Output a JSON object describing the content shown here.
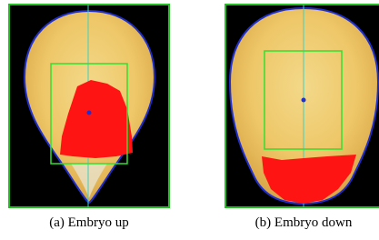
{
  "figure": {
    "panels": [
      {
        "caption": "(a) Embryo up"
      },
      {
        "caption": "(b) Embryo down"
      }
    ]
  }
}
